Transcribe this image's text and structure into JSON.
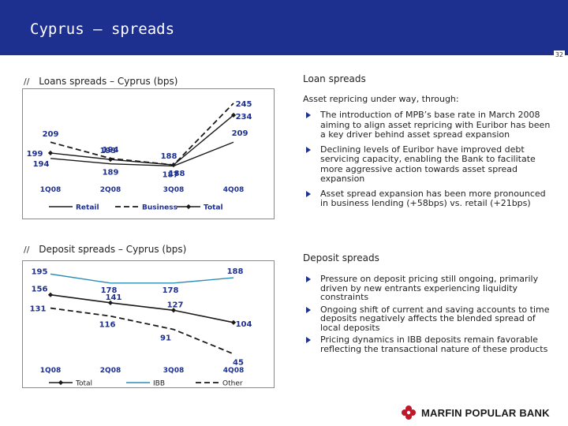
{
  "header": {
    "title": "Cyprus – spreads",
    "page_number": "32"
  },
  "loans_chart": {
    "section_marker": "//",
    "title": "Loans spreads – Cyprus (bps)",
    "chart_data": {
      "type": "line",
      "categories": [
        "1Q08",
        "2Q08",
        "3Q08",
        "4Q08"
      ],
      "series": [
        {
          "name": "Retail",
          "values": [
            194,
            189,
            187,
            209
          ],
          "labels": [
            "194",
            "189",
            "187",
            "209"
          ]
        },
        {
          "name": "Business",
          "values": [
            209,
            194,
            188,
            245
          ],
          "labels": [
            "209",
            "194",
            "188",
            "245"
          ]
        },
        {
          "name": "Total",
          "values": [
            199,
            193,
            188,
            234
          ],
          "labels": [
            "199",
            "193",
            "188",
            "234"
          ]
        }
      ],
      "legend_position": "bottom"
    }
  },
  "deposits_chart": {
    "section_marker": "//",
    "title": "Deposit spreads – Cyprus (bps)",
    "chart_data": {
      "type": "line",
      "categories": [
        "1Q08",
        "2Q08",
        "3Q08",
        "4Q08"
      ],
      "series": [
        {
          "name": "Total",
          "values": [
            156,
            141,
            127,
            104
          ],
          "labels": [
            "156",
            "141",
            "127",
            "104"
          ]
        },
        {
          "name": "IBB",
          "values": [
            195,
            178,
            178,
            188
          ],
          "labels": [
            "195",
            "178",
            "178",
            "188"
          ]
        },
        {
          "name": "Other",
          "values": [
            131,
            116,
            91,
            45
          ],
          "labels": [
            "131",
            "116",
            "91",
            "45"
          ]
        }
      ],
      "legend_position": "bottom"
    }
  },
  "loan_spreads": {
    "title": "Loan spreads",
    "subtitle": "Asset repricing under way, through:",
    "bullets": [
      "The introduction of MPB’s base rate in March 2008 aiming to align asset repricing with Euribor has been a key driver behind asset spread expansion",
      "Declining levels of Euribor have improved debt servicing capacity, enabling the Bank to facilitate more aggressive action towards asset spread expansion",
      "Asset spread expansion has been more pronounced in business lending (+58bps) vs. retail (+21bps)"
    ]
  },
  "deposit_spreads": {
    "title": "Deposit spreads",
    "bullets": [
      "Pressure on deposit pricing still ongoing, primarily driven by new entrants experiencing liquidity constraints",
      "Ongoing shift of current and saving accounts to time deposits negatively affects the blended spread of local deposits",
      "Pricing dynamics in IBB deposits remain favorable reflecting the transactional nature of these products"
    ]
  },
  "footer": {
    "logo_text": "MARFIN POPULAR BANK"
  },
  "colors": {
    "header_bg": "#1d2f8f",
    "label_blue": "#1d2f8f",
    "ibb_line": "#2b8fb5",
    "frame": "#8a8a8a"
  }
}
